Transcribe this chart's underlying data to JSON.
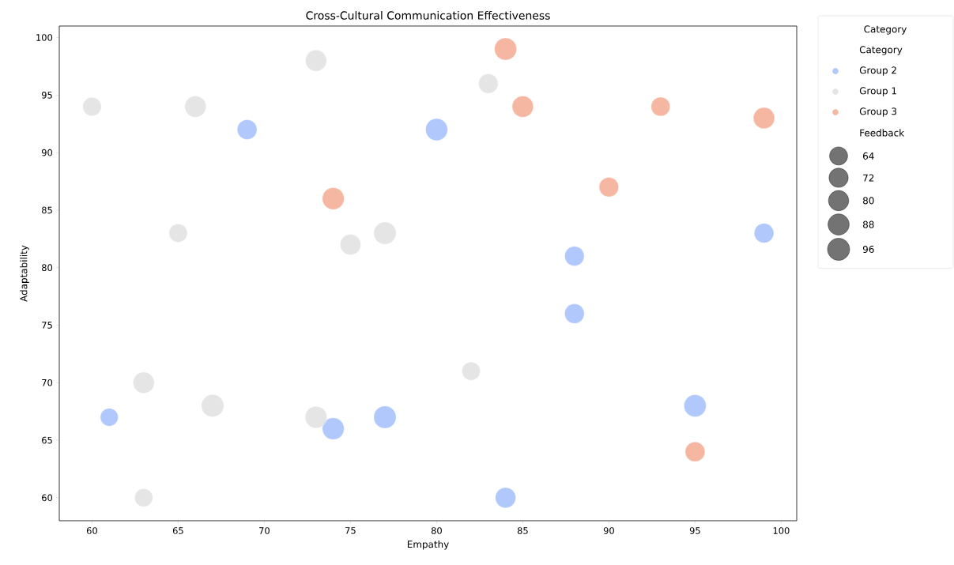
{
  "chart_data": {
    "type": "bubble",
    "title": "Cross-Cultural Communication Effectiveness",
    "xlabel": "Empathy",
    "ylabel": "Adaptability",
    "legend_title": "Category",
    "annotations": [
      "Category",
      "Feedback"
    ],
    "xlim": [
      58.1,
      100.9
    ],
    "ylim": [
      58,
      101
    ],
    "xticks": [
      60,
      65,
      70,
      75,
      80,
      85,
      90,
      95,
      100
    ],
    "yticks": [
      60,
      65,
      70,
      75,
      80,
      85,
      90,
      95,
      100
    ],
    "legend": "right",
    "marker": "circle",
    "size_legend": [
      64,
      72,
      80,
      88,
      96
    ],
    "series": [
      {
        "name": "Group 2",
        "color": "#8eb0fb",
        "x": [
          69,
          80,
          99,
          88,
          88,
          61,
          74,
          77,
          95,
          84
        ],
        "values": [
          92,
          92,
          83,
          81,
          76,
          67,
          66,
          67,
          68,
          60
        ],
        "sizes": [
          76,
          95,
          75,
          74,
          75,
          62,
          93,
          98,
          96,
          82
        ]
      },
      {
        "name": "Group 1",
        "color": "#dadada",
        "x": [
          60,
          66,
          73,
          83,
          65,
          75,
          77,
          63,
          67,
          73,
          63,
          82
        ],
        "values": [
          94,
          94,
          98,
          96,
          83,
          82,
          83,
          70,
          68,
          67,
          60,
          71
        ],
        "sizes": [
          67,
          88,
          88,
          75,
          65,
          83,
          98,
          88,
          98,
          93,
          64,
          65
        ]
      },
      {
        "name": "Group 3",
        "color": "#f19879",
        "x": [
          84,
          85,
          93,
          99,
          90,
          74,
          95
        ],
        "values": [
          99,
          94,
          94,
          93,
          87,
          86,
          64
        ],
        "sizes": [
          96,
          88,
          70,
          88,
          74,
          93,
          76
        ]
      }
    ]
  }
}
